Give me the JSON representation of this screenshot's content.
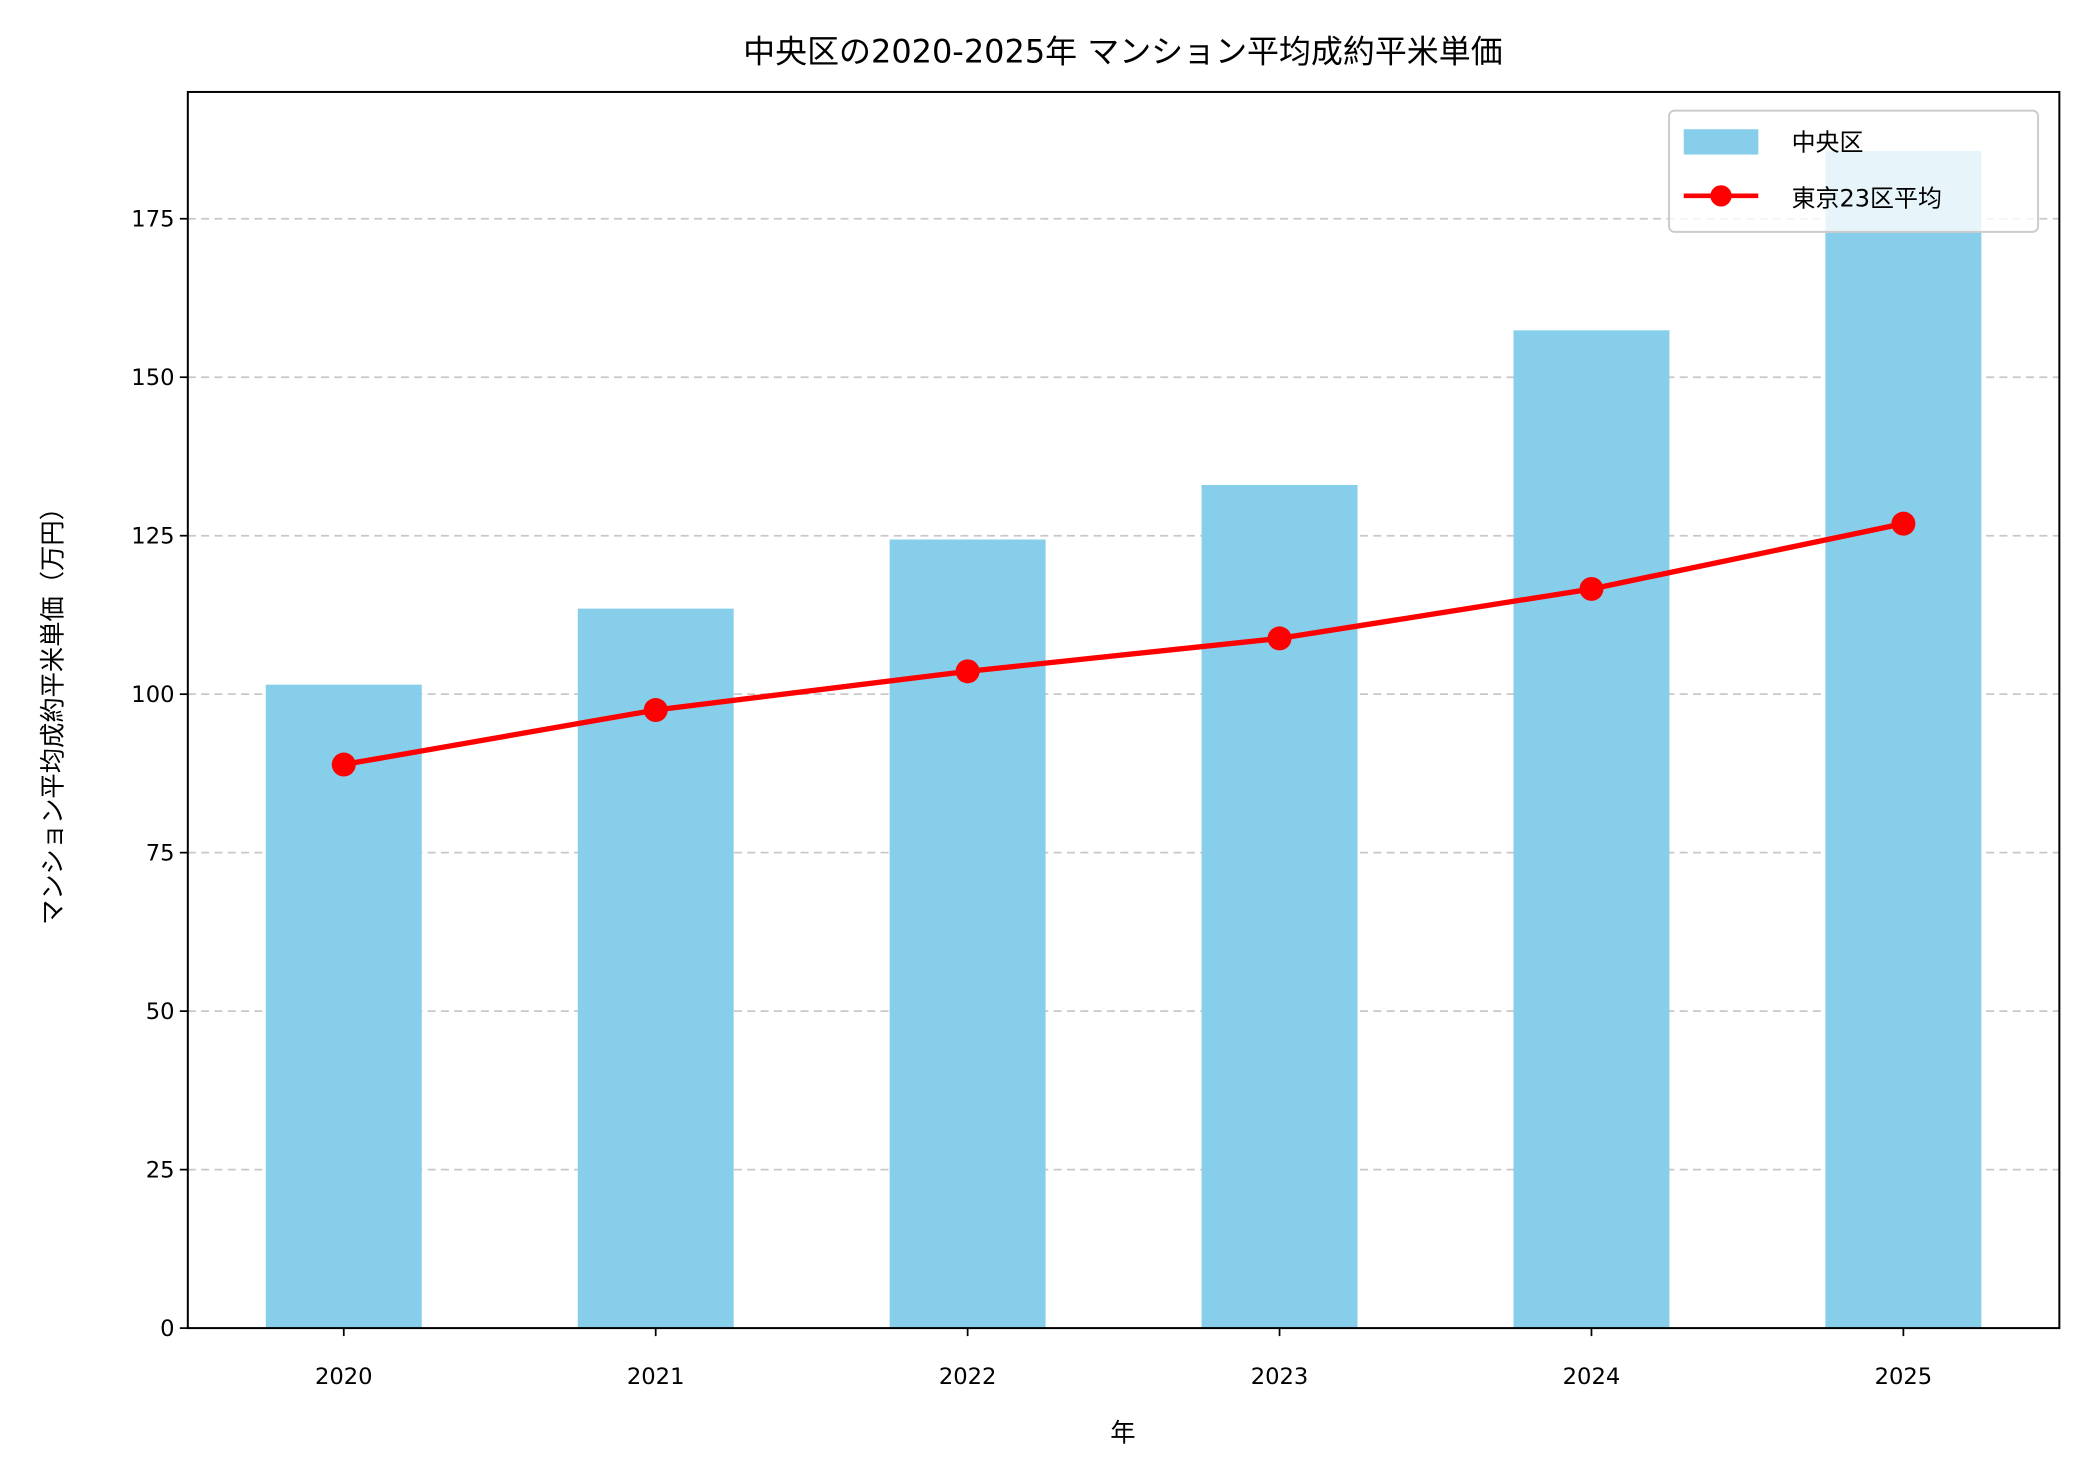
{
  "chart_data": {
    "type": "bar",
    "title": "中央区の2020-2025年 マンション平均成約平米単価",
    "xlabel": "年",
    "ylabel": "マンション平均成約平米単価（万円）",
    "categories": [
      "2020",
      "2021",
      "2022",
      "2023",
      "2024",
      "2025"
    ],
    "ylim": [
      0,
      195
    ],
    "yticks": [
      0,
      25,
      50,
      75,
      100,
      125,
      150,
      175
    ],
    "grid": "y-dashed",
    "legend_position": "top-right",
    "series": [
      {
        "name": "中央区",
        "type": "bar",
        "color": "#87CEEB",
        "values": [
          101.5,
          113.5,
          124.4,
          133.0,
          157.4,
          185.7
        ]
      },
      {
        "name": "東京23区平均",
        "type": "line",
        "color": "#FF0000",
        "marker": "circle",
        "values": [
          88.9,
          97.5,
          103.6,
          108.8,
          116.6,
          126.9
        ]
      }
    ]
  }
}
